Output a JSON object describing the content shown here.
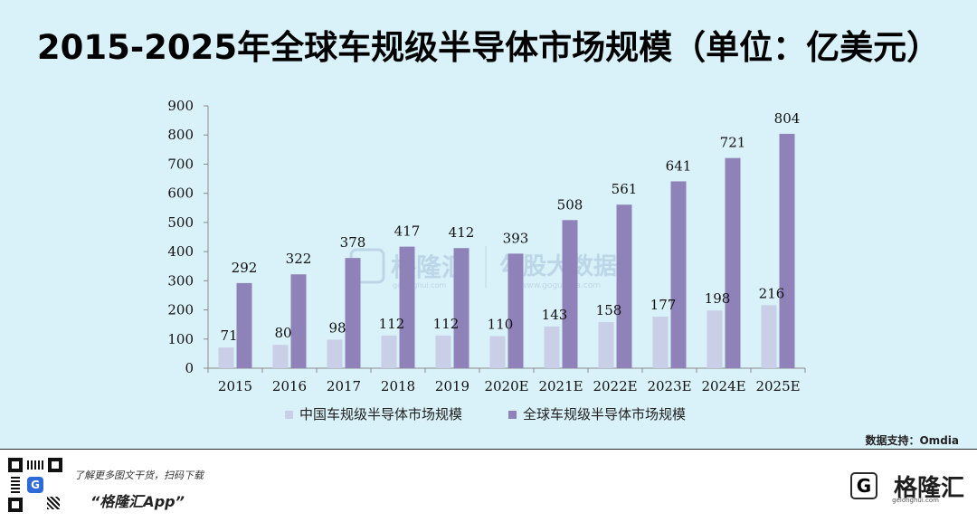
{
  "title": "2015-2025年全球车规级半导体市场规模（单位：亿美元）",
  "chart_data": {
    "type": "bar",
    "categories": [
      "2015",
      "2016",
      "2017",
      "2018",
      "2019",
      "2020E",
      "2021E",
      "2022E",
      "2023E",
      "2024E",
      "2025E"
    ],
    "series": [
      {
        "name": "中国车规级半导体市场规模",
        "values": [
          71,
          80,
          98,
          112,
          112,
          110,
          143,
          158,
          177,
          198,
          216
        ],
        "color": "#c9cfe6"
      },
      {
        "name": "全球车规级半导体市场规模",
        "values": [
          292,
          322,
          378,
          417,
          412,
          393,
          508,
          561,
          641,
          721,
          804
        ],
        "color": "#8e82b8"
      }
    ],
    "ylim": [
      0,
      900
    ],
    "yticks": [
      0,
      100,
      200,
      300,
      400,
      500,
      600,
      700,
      800,
      900
    ],
    "legend_position": "bottom",
    "grid": false
  },
  "watermark": {
    "left_text": "格隆汇",
    "left_sub": "gelonghui.com",
    "right_text": "勾股大数据",
    "right_sub": "www.gogudata.com"
  },
  "source_text": "数据支持：Omdia",
  "footer": {
    "promo": "了解更多图文干货，扫码下载",
    "app_name": "“格隆汇App”",
    "qr_icon": "G",
    "logo_mark": "G",
    "logo_text": "格隆汇",
    "logo_sub": "gelonghui.com"
  }
}
